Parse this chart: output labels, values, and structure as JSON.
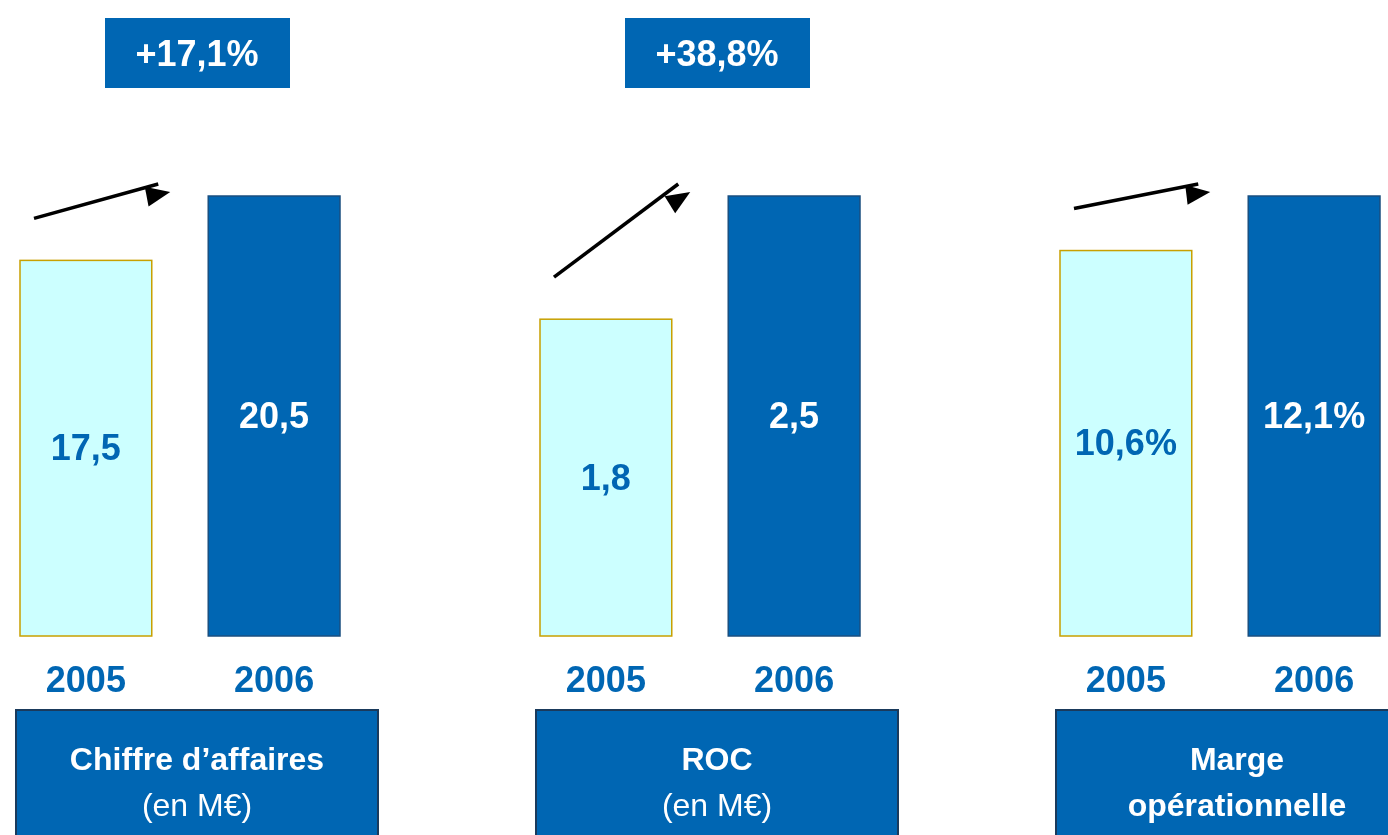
{
  "chart_data": [
    {
      "type": "bar",
      "categories": [
        "2005",
        "2006"
      ],
      "values": [
        17.5,
        20.5
      ],
      "colors": [
        "#ccffff",
        "#0066b3"
      ],
      "value_labels": [
        "17,5",
        "20,5"
      ],
      "xlabel": "Chiffre d’affaires\n(en M€)",
      "annotations": [
        "+17,1%"
      ]
    },
    {
      "type": "bar",
      "categories": [
        "2005",
        "2006"
      ],
      "values": [
        1.8,
        2.5
      ],
      "colors": [
        "#ccffff",
        "#0066b3"
      ],
      "value_labels": [
        "1,8",
        "2,5"
      ],
      "xlabel": "ROC\n(en M€)",
      "annotations": [
        "+38,8%"
      ]
    },
    {
      "type": "bar",
      "categories": [
        "2005",
        "2006"
      ],
      "values": [
        10.6,
        12.1
      ],
      "colors": [
        "#ccffff",
        "#0066b3"
      ],
      "value_labels": [
        "10,6%",
        "12,1%"
      ],
      "xlabel": "Marge\nopérationnelle"
    }
  ]
}
